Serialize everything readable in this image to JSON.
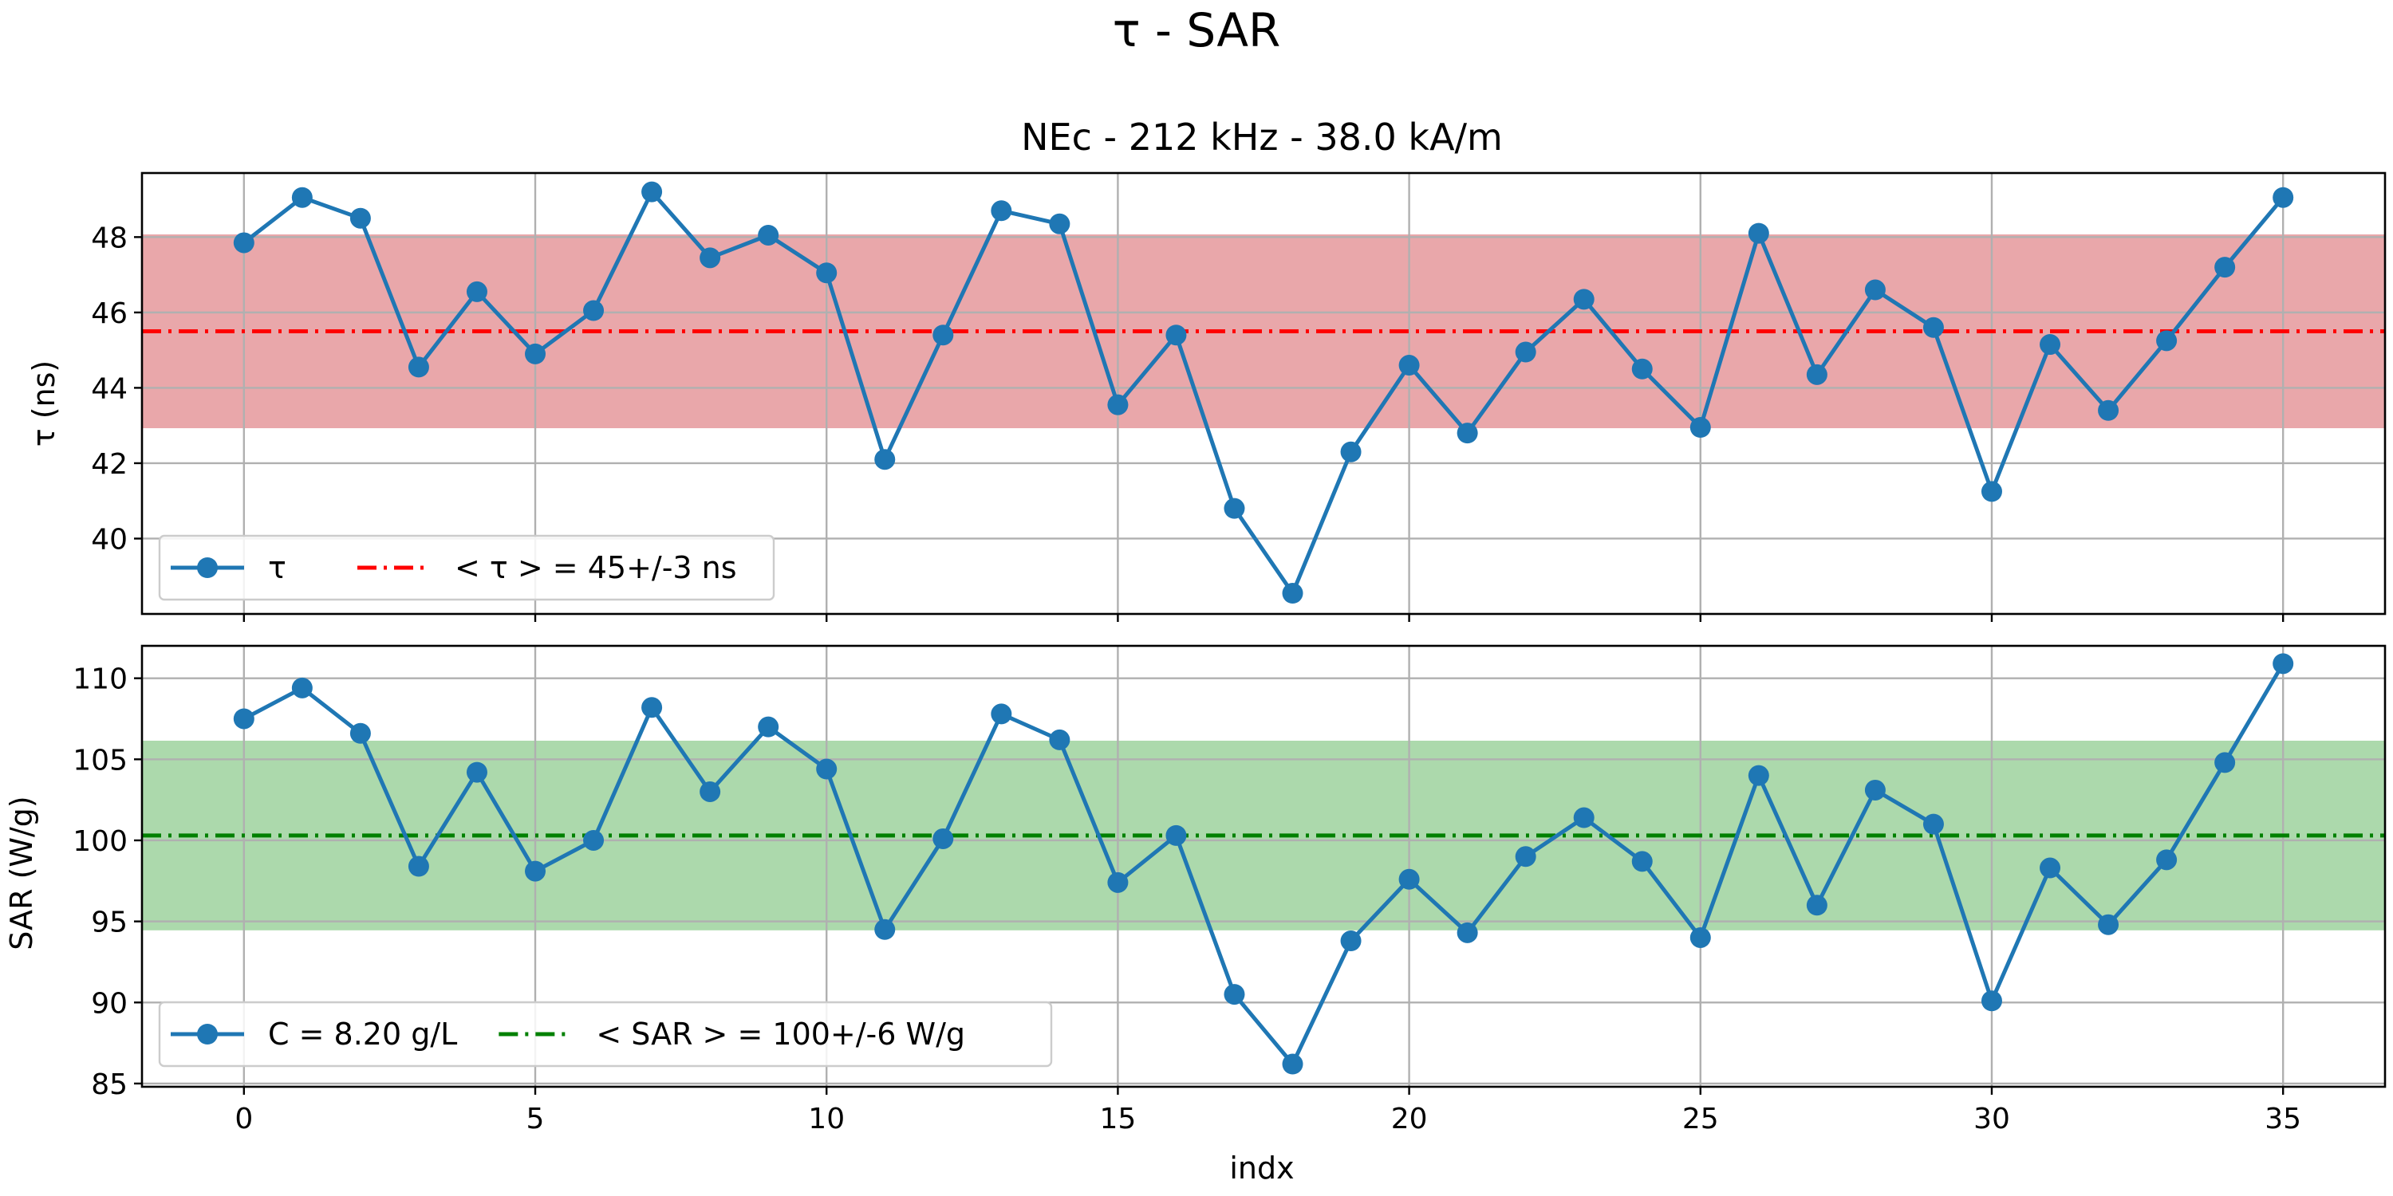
{
  "figure": {
    "suptitle": "τ - SAR",
    "xlabel": "indx"
  },
  "chart_data": [
    {
      "type": "line",
      "title": "NEc - 212 kHz - 38.0 kA/m",
      "xlabel": "",
      "ylabel": "τ (ns)",
      "xlim": [
        -1.75,
        36.75
      ],
      "ylim": [
        38.0,
        49.7
      ],
      "xticks": [
        0,
        5,
        10,
        15,
        20,
        25,
        30,
        35
      ],
      "yticks": [
        40,
        42,
        44,
        46,
        48
      ],
      "grid": true,
      "legend_location": "lower-left",
      "colors": {
        "series": "#1f77b4",
        "mean": "#ff0000",
        "band": "#e8a3a6"
      },
      "series": [
        {
          "name": "τ",
          "x": [
            0,
            1,
            2,
            3,
            4,
            5,
            6,
            7,
            8,
            9,
            10,
            11,
            12,
            13,
            14,
            15,
            16,
            17,
            18,
            19,
            20,
            21,
            22,
            23,
            24,
            25,
            26,
            27,
            28,
            29,
            30,
            31,
            32,
            33,
            34,
            35
          ],
          "values": [
            47.85,
            49.05,
            48.5,
            44.55,
            46.55,
            44.9,
            46.05,
            49.2,
            47.45,
            48.05,
            47.05,
            42.1,
            45.4,
            48.7,
            48.35,
            43.55,
            45.4,
            40.8,
            38.55,
            42.3,
            44.6,
            42.8,
            44.95,
            46.35,
            44.5,
            42.95,
            48.1,
            44.35,
            46.6,
            45.6,
            41.25,
            45.15,
            43.4,
            45.25,
            47.2,
            49.05
          ]
        }
      ],
      "mean_line": {
        "label": "< τ >  = 45+/-3 ns",
        "value": 45.5
      },
      "band": {
        "low": 42.95,
        "high": 48.05
      }
    },
    {
      "type": "line",
      "title": "",
      "xlabel": "indx",
      "ylabel": "SAR (W/g)",
      "xlim": [
        -1.75,
        36.75
      ],
      "ylim": [
        84.8,
        112.0
      ],
      "xticks": [
        0,
        5,
        10,
        15,
        20,
        25,
        30,
        35
      ],
      "xticklabels": [
        "0",
        "5",
        "10",
        "15",
        "20",
        "25",
        "30",
        "35"
      ],
      "yticks": [
        85,
        90,
        95,
        100,
        105,
        110
      ],
      "grid": true,
      "legend_location": "lower-left",
      "colors": {
        "series": "#1f77b4",
        "mean": "#008000",
        "band": "#a8d8a8"
      },
      "series": [
        {
          "name": "C = 8.20 g/L",
          "x": [
            0,
            1,
            2,
            3,
            4,
            5,
            6,
            7,
            8,
            9,
            10,
            11,
            12,
            13,
            14,
            15,
            16,
            17,
            18,
            19,
            20,
            21,
            22,
            23,
            24,
            25,
            26,
            27,
            28,
            29,
            30,
            31,
            32,
            33,
            34,
            35
          ],
          "values": [
            107.5,
            109.4,
            106.6,
            98.4,
            104.2,
            98.1,
            100.0,
            108.2,
            103.0,
            107.0,
            104.4,
            94.5,
            100.1,
            107.8,
            106.2,
            97.4,
            100.3,
            90.5,
            86.2,
            93.8,
            97.6,
            94.3,
            99.0,
            101.4,
            98.7,
            94.0,
            104.0,
            96.0,
            103.1,
            101.0,
            90.1,
            98.3,
            94.8,
            98.8,
            104.8,
            110.9
          ]
        }
      ],
      "mean_line": {
        "label": "< SAR >  = 100+/-6 W/g",
        "value": 100.3
      },
      "band": {
        "low": 94.5,
        "high": 106.1
      }
    }
  ]
}
